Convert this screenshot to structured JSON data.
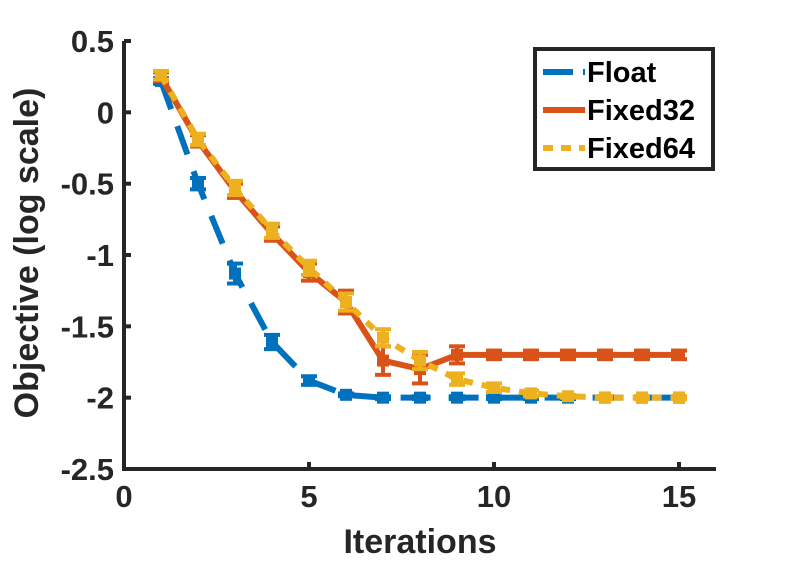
{
  "chart_data": {
    "type": "line",
    "title": "",
    "xlabel": "Iterations",
    "ylabel": "Objective (log scale)",
    "xlim": [
      0,
      16
    ],
    "ylim": [
      -2.5,
      0.5
    ],
    "xticks": [
      0,
      5,
      10,
      15
    ],
    "xtick_labels": [
      "0",
      "5",
      "10",
      "15"
    ],
    "yticks": [
      0.5,
      0,
      -0.5,
      -1,
      -1.5,
      -2,
      -2.5
    ],
    "ytick_labels": [
      "0.5",
      "0",
      "-0.5",
      "-1",
      "-1.5",
      "-2",
      "-2.5"
    ],
    "grid": false,
    "legend_position": "top-right",
    "x": [
      1,
      2,
      3,
      4,
      5,
      6,
      7,
      8,
      9,
      10,
      11,
      12,
      13,
      14,
      15
    ],
    "series": [
      {
        "name": "Float",
        "color": "#0072BD",
        "line_style": "dashed",
        "values": [
          0.22,
          -0.5,
          -1.13,
          -1.61,
          -1.88,
          -1.98,
          -2.0,
          -2.0,
          -2.0,
          -2.0,
          -2.0,
          -2.0,
          -2.0,
          -2.0,
          -2.0
        ],
        "error": [
          0.02,
          0.04,
          0.07,
          0.05,
          0.03,
          0.01,
          0.01,
          0.01,
          0.01,
          0.01,
          0.01,
          0.01,
          0.01,
          0.01,
          0.01
        ]
      },
      {
        "name": "Fixed32",
        "color": "#D95319",
        "line_style": "solid",
        "values": [
          0.25,
          -0.2,
          -0.55,
          -0.85,
          -1.12,
          -1.33,
          -1.74,
          -1.8,
          -1.7,
          -1.7,
          -1.7,
          -1.7,
          -1.7,
          -1.7,
          -1.7
        ],
        "error": [
          0.03,
          0.04,
          0.05,
          0.05,
          0.06,
          0.08,
          0.1,
          0.1,
          0.06,
          0.03,
          0.03,
          0.03,
          0.03,
          0.03,
          0.03
        ]
      },
      {
        "name": "Fixed64",
        "color": "#EDB120",
        "line_style": "dotted",
        "values": [
          0.26,
          -0.19,
          -0.53,
          -0.83,
          -1.09,
          -1.33,
          -1.58,
          -1.74,
          -1.87,
          -1.93,
          -1.97,
          -1.99,
          -2.0,
          -2.0,
          -2.0
        ],
        "error": [
          0.03,
          0.04,
          0.05,
          0.05,
          0.05,
          0.06,
          0.06,
          0.06,
          0.04,
          0.03,
          0.02,
          0.01,
          0.01,
          0.01,
          0.01
        ]
      }
    ]
  }
}
